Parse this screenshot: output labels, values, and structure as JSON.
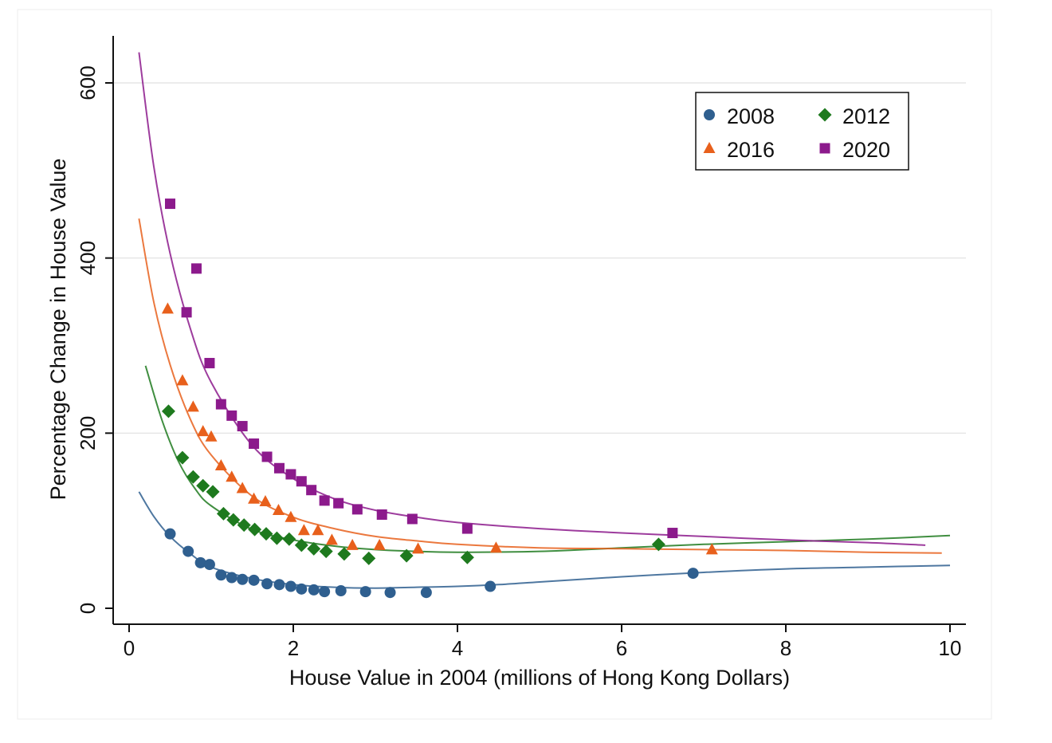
{
  "chart_data": {
    "type": "scatter",
    "title": "",
    "xlabel": "House Value in 2004 (millions of Hong Kong Dollars)",
    "ylabel": "Percentage Change in House Value",
    "xlim": [
      0,
      10
    ],
    "ylim": [
      0,
      600
    ],
    "x_ticks": [
      0,
      2,
      4,
      6,
      8,
      10
    ],
    "y_ticks": [
      0,
      200,
      400,
      600
    ],
    "grid": "horizontal",
    "legend_position": "top-right",
    "series": [
      {
        "name": "2008",
        "marker": "circle",
        "color": "#2f5f8f",
        "points": [
          [
            0.5,
            85
          ],
          [
            0.72,
            65
          ],
          [
            0.87,
            52
          ],
          [
            0.98,
            50
          ],
          [
            1.12,
            38
          ],
          [
            1.25,
            35
          ],
          [
            1.38,
            33
          ],
          [
            1.52,
            32
          ],
          [
            1.68,
            28
          ],
          [
            1.83,
            27
          ],
          [
            1.97,
            25
          ],
          [
            2.1,
            22
          ],
          [
            2.25,
            21
          ],
          [
            2.38,
            19
          ],
          [
            2.58,
            20
          ],
          [
            2.88,
            19
          ],
          [
            3.18,
            18
          ],
          [
            3.62,
            18
          ],
          [
            4.4,
            25
          ],
          [
            6.87,
            40
          ]
        ],
        "fit": [
          [
            0.12,
            133
          ],
          [
            0.3,
            105
          ],
          [
            0.5,
            82
          ],
          [
            0.75,
            62
          ],
          [
            1.0,
            47
          ],
          [
            1.5,
            34
          ],
          [
            2.0,
            27
          ],
          [
            2.5,
            24
          ],
          [
            3.0,
            23
          ],
          [
            3.5,
            24
          ],
          [
            4.0,
            25
          ],
          [
            4.5,
            27
          ],
          [
            5.0,
            30
          ],
          [
            6.0,
            36
          ],
          [
            7.0,
            41
          ],
          [
            8.0,
            45
          ],
          [
            9.0,
            47
          ],
          [
            10.0,
            49
          ]
        ]
      },
      {
        "name": "2012",
        "marker": "diamond",
        "color": "#1e7a1e",
        "points": [
          [
            0.48,
            225
          ],
          [
            0.65,
            172
          ],
          [
            0.78,
            150
          ],
          [
            0.9,
            140
          ],
          [
            1.02,
            133
          ],
          [
            1.15,
            108
          ],
          [
            1.27,
            101
          ],
          [
            1.4,
            95
          ],
          [
            1.53,
            90
          ],
          [
            1.67,
            85
          ],
          [
            1.8,
            80
          ],
          [
            1.95,
            79
          ],
          [
            2.1,
            72
          ],
          [
            2.25,
            68
          ],
          [
            2.4,
            65
          ],
          [
            2.62,
            62
          ],
          [
            2.92,
            57
          ],
          [
            3.38,
            60
          ],
          [
            4.12,
            58
          ],
          [
            6.45,
            73
          ]
        ],
        "fit": [
          [
            0.2,
            277
          ],
          [
            0.4,
            215
          ],
          [
            0.6,
            168
          ],
          [
            0.8,
            137
          ],
          [
            1.0,
            117
          ],
          [
            1.5,
            90
          ],
          [
            2.0,
            78
          ],
          [
            2.5,
            71
          ],
          [
            3.0,
            67
          ],
          [
            3.5,
            65
          ],
          [
            4.0,
            64
          ],
          [
            5.0,
            65
          ],
          [
            6.0,
            69
          ],
          [
            7.0,
            73
          ],
          [
            8.0,
            76
          ],
          [
            9.0,
            79
          ],
          [
            10.0,
            83
          ]
        ]
      },
      {
        "name": "2016",
        "marker": "triangle",
        "color": "#e8601c",
        "points": [
          [
            0.47,
            342
          ],
          [
            0.65,
            260
          ],
          [
            0.78,
            230
          ],
          [
            0.9,
            202
          ],
          [
            1.0,
            196
          ],
          [
            1.12,
            163
          ],
          [
            1.25,
            150
          ],
          [
            1.38,
            137
          ],
          [
            1.52,
            125
          ],
          [
            1.66,
            122
          ],
          [
            1.82,
            112
          ],
          [
            1.97,
            104
          ],
          [
            2.13,
            89
          ],
          [
            2.3,
            89
          ],
          [
            2.47,
            78
          ],
          [
            2.72,
            72
          ],
          [
            3.05,
            72
          ],
          [
            3.52,
            68
          ],
          [
            4.47,
            69
          ],
          [
            7.1,
            67
          ]
        ],
        "fit": [
          [
            0.12,
            445
          ],
          [
            0.3,
            350
          ],
          [
            0.5,
            278
          ],
          [
            0.75,
            215
          ],
          [
            1.0,
            175
          ],
          [
            1.5,
            128
          ],
          [
            2.0,
            104
          ],
          [
            2.5,
            91
          ],
          [
            3.0,
            82
          ],
          [
            3.5,
            77
          ],
          [
            4.0,
            73
          ],
          [
            5.0,
            69
          ],
          [
            6.0,
            68
          ],
          [
            7.0,
            67
          ],
          [
            8.0,
            66
          ],
          [
            9.0,
            64
          ],
          [
            9.9,
            63
          ]
        ]
      },
      {
        "name": "2020",
        "marker": "square",
        "color": "#8c1a8c",
        "points": [
          [
            0.5,
            462
          ],
          [
            0.82,
            388
          ],
          [
            0.7,
            338
          ],
          [
            0.98,
            280
          ],
          [
            1.12,
            233
          ],
          [
            1.25,
            220
          ],
          [
            1.38,
            208
          ],
          [
            1.52,
            188
          ],
          [
            1.68,
            173
          ],
          [
            1.83,
            160
          ],
          [
            1.97,
            153
          ],
          [
            2.1,
            145
          ],
          [
            2.22,
            135
          ],
          [
            2.38,
            123
          ],
          [
            2.55,
            120
          ],
          [
            2.78,
            113
          ],
          [
            3.08,
            107
          ],
          [
            3.45,
            102
          ],
          [
            4.12,
            91
          ],
          [
            6.62,
            86
          ]
        ],
        "fit": [
          [
            0.12,
            635
          ],
          [
            0.3,
            505
          ],
          [
            0.5,
            405
          ],
          [
            0.75,
            318
          ],
          [
            1.0,
            258
          ],
          [
            1.5,
            186
          ],
          [
            2.0,
            148
          ],
          [
            2.5,
            125
          ],
          [
            3.0,
            112
          ],
          [
            3.5,
            104
          ],
          [
            4.0,
            98
          ],
          [
            5.0,
            91
          ],
          [
            6.0,
            86
          ],
          [
            7.0,
            82
          ],
          [
            8.0,
            78
          ],
          [
            9.0,
            75
          ],
          [
            9.7,
            72
          ]
        ]
      }
    ]
  }
}
